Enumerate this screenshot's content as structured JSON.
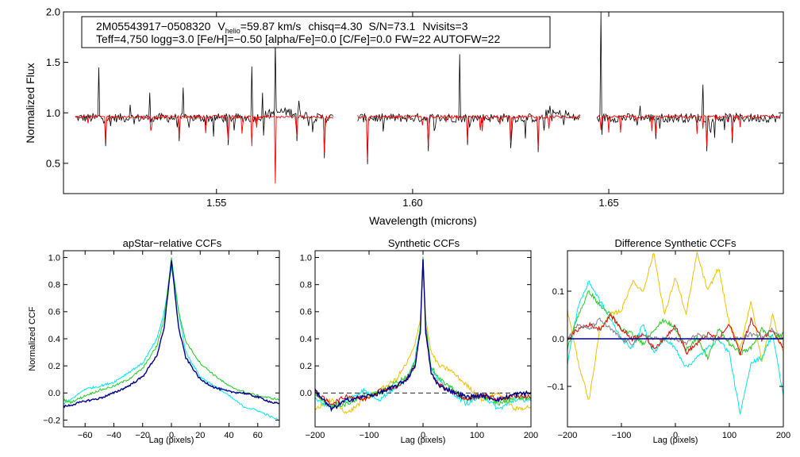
{
  "colors": {
    "observed": "#000000",
    "model": "#ff0000",
    "navy": "#00008b",
    "green": "#22cc22",
    "cyan": "#00e5ee",
    "yellow": "#f0c000",
    "red": "#dd0000",
    "grey": "#808080"
  },
  "chart_data": [
    {
      "type": "line",
      "id": "spectrum",
      "title": "",
      "xlabel": "Wavelength (microns)",
      "ylabel": "Normalized Flux",
      "xlim": [
        1.511,
        1.6945
      ],
      "ylim": [
        0.2,
        2.0
      ],
      "xticks": [
        1.55,
        1.6,
        1.65
      ],
      "xticklabels": [
        "1.55",
        "1.60",
        "1.65"
      ],
      "yticks": [
        0.5,
        1.0,
        1.5,
        2.0
      ],
      "yticklabels": [
        "0.5",
        "1.0",
        "1.5",
        "2.0"
      ],
      "annotation": {
        "star_id": "2M05543917−0508320",
        "vhelio_label": "V",
        "vhelio_sub": "helio",
        "vhelio_value": "=59.87 km/s",
        "chisq": "chisq=4.30",
        "snr": "S/N=73.1",
        "nvisits": "Nvisits=3",
        "params": "Teff=4,750 logg=3.0 [Fe/H]=−0.50 [alpha/Fe]=0.0 [C/Fe]=0.0 FW=22 AUTOFW=22"
      },
      "chips": [
        [
          1.514,
          1.58
        ],
        [
          1.586,
          1.643
        ],
        [
          1.647,
          1.694
        ]
      ],
      "series": [
        {
          "name": "observed spectrum",
          "color": "#000000",
          "continuum": 0.95
        },
        {
          "name": "synthetic model",
          "color": "#ff0000",
          "continuum": 0.96
        }
      ],
      "spikes": [
        {
          "x": 1.52,
          "y": 1.45
        },
        {
          "x": 1.528,
          "y": 1.08
        },
        {
          "x": 1.533,
          "y": 1.2
        },
        {
          "x": 1.5415,
          "y": 1.25
        },
        {
          "x": 1.559,
          "y": 1.46
        },
        {
          "x": 1.5618,
          "y": 1.2
        },
        {
          "x": 1.565,
          "y": 1.7
        },
        {
          "x": 1.571,
          "y": 1.12
        },
        {
          "x": 1.612,
          "y": 1.58
        },
        {
          "x": 1.635,
          "y": 1.07
        },
        {
          "x": 1.648,
          "y": 2.0
        },
        {
          "x": 1.658,
          "y": 1.07
        },
        {
          "x": 1.674,
          "y": 1.28
        }
      ],
      "dips": [
        {
          "x": 1.5218,
          "y": 0.67
        },
        {
          "x": 1.5405,
          "y": 0.72
        },
        {
          "x": 1.553,
          "y": 0.68
        },
        {
          "x": 1.559,
          "y": 0.62
        },
        {
          "x": 1.565,
          "y": 0.25
        },
        {
          "x": 1.5705,
          "y": 0.72
        },
        {
          "x": 1.5775,
          "y": 0.55
        },
        {
          "x": 1.5885,
          "y": 0.49
        },
        {
          "x": 1.604,
          "y": 0.62
        },
        {
          "x": 1.614,
          "y": 0.68
        },
        {
          "x": 1.625,
          "y": 0.65
        },
        {
          "x": 1.632,
          "y": 0.61
        },
        {
          "x": 1.648,
          "y": 0.78
        },
        {
          "x": 1.662,
          "y": 0.74
        },
        {
          "x": 1.675,
          "y": 0.62
        },
        {
          "x": 1.6815,
          "y": 0.7
        }
      ]
    },
    {
      "type": "line",
      "id": "apstar_ccf",
      "title": "apStar−relative CCFs",
      "xlabel": "Lag (pixels)",
      "ylabel": "Normalized CCF",
      "xlim": [
        -75,
        75
      ],
      "ylim": [
        -0.25,
        1.05
      ],
      "xticks": [
        -60,
        -40,
        -20,
        0,
        20,
        40,
        60
      ],
      "xticklabels": [
        "−60",
        "−40",
        "−20",
        "0",
        "20",
        "40",
        "60"
      ],
      "yticks": [
        -0.2,
        0.0,
        0.2,
        0.4,
        0.6,
        0.8,
        1.0
      ],
      "yticklabels": [
        "−0.2",
        "0.0",
        "0.2",
        "0.4",
        "0.6",
        "0.8",
        "1.0"
      ],
      "series": [
        {
          "name": "cyan",
          "color": "#00e5ee",
          "x": [
            -75,
            -70,
            -60,
            -50,
            -40,
            -30,
            -20,
            -10,
            -5,
            0,
            5,
            10,
            20,
            30,
            40,
            50,
            60,
            70,
            75
          ],
          "y": [
            -0.08,
            -0.05,
            0.03,
            0.05,
            0.08,
            0.15,
            0.22,
            0.4,
            0.6,
            0.93,
            0.6,
            0.3,
            0.12,
            0.05,
            -0.02,
            -0.1,
            -0.13,
            -0.18,
            -0.2
          ]
        },
        {
          "name": "green",
          "color": "#22cc22",
          "x": [
            -75,
            -70,
            -60,
            -50,
            -40,
            -30,
            -20,
            -10,
            -5,
            0,
            5,
            10,
            20,
            30,
            40,
            50,
            60,
            70,
            75
          ],
          "y": [
            -0.05,
            -0.07,
            -0.02,
            0.02,
            0.05,
            0.1,
            0.18,
            0.35,
            0.55,
            1.0,
            0.6,
            0.38,
            0.22,
            0.13,
            0.05,
            0.01,
            -0.02,
            -0.04,
            -0.05
          ]
        },
        {
          "name": "navy",
          "color": "#00008b",
          "x": [
            -75,
            -70,
            -60,
            -50,
            -40,
            -30,
            -20,
            -10,
            -5,
            0,
            5,
            10,
            20,
            30,
            40,
            50,
            60,
            70,
            75
          ],
          "y": [
            -0.1,
            -0.09,
            -0.06,
            -0.04,
            0.0,
            0.05,
            0.12,
            0.28,
            0.48,
            0.98,
            0.48,
            0.26,
            0.1,
            0.04,
            0.01,
            0.0,
            -0.03,
            -0.07,
            -0.08
          ]
        }
      ]
    },
    {
      "type": "line",
      "id": "synthetic_ccf",
      "title": "Synthetic CCFs",
      "xlabel": "Lag (pixels)",
      "ylabel": "",
      "xlim": [
        -200,
        200
      ],
      "ylim": [
        -0.25,
        1.05
      ],
      "xticks": [
        -200,
        -100,
        0,
        100,
        200
      ],
      "xticklabels": [
        "−200",
        "−100",
        "0",
        "100",
        "200"
      ],
      "yticks": [
        0.0,
        0.2,
        0.4,
        0.6,
        0.8,
        1.0
      ],
      "yticklabels": [
        "0.0",
        "0.2",
        "0.4",
        "0.6",
        "0.8",
        "1.0"
      ],
      "zero_line": true,
      "series": [
        {
          "name": "yellow",
          "color": "#f0c000",
          "x": [
            -200,
            -170,
            -140,
            -110,
            -80,
            -50,
            -30,
            -15,
            -5,
            0,
            5,
            15,
            30,
            50,
            80,
            110,
            140,
            170,
            200
          ],
          "y": [
            -0.12,
            -0.05,
            -0.15,
            -0.05,
            0.02,
            0.1,
            0.22,
            0.35,
            0.55,
            0.95,
            0.55,
            0.3,
            0.2,
            0.17,
            0.06,
            -0.05,
            0.0,
            -0.12,
            -0.1
          ]
        },
        {
          "name": "cyan",
          "color": "#00e5ee",
          "x": [
            -200,
            -170,
            -140,
            -110,
            -80,
            -50,
            -30,
            -15,
            -5,
            0,
            5,
            15,
            30,
            50,
            80,
            110,
            140,
            170,
            200
          ],
          "y": [
            -0.05,
            -0.1,
            -0.05,
            0.02,
            -0.05,
            0.05,
            0.1,
            0.25,
            0.5,
            0.98,
            0.5,
            0.18,
            0.08,
            0.02,
            -0.08,
            -0.02,
            -0.12,
            -0.05,
            -0.05
          ]
        },
        {
          "name": "green",
          "color": "#22cc22",
          "x": [
            -200,
            -170,
            -140,
            -110,
            -80,
            -50,
            -30,
            -15,
            -5,
            0,
            5,
            15,
            30,
            50,
            80,
            110,
            140,
            170,
            200
          ],
          "y": [
            -0.02,
            -0.1,
            -0.08,
            -0.02,
            0.0,
            0.08,
            0.12,
            0.22,
            0.48,
            1.0,
            0.5,
            0.2,
            0.1,
            0.05,
            -0.05,
            -0.02,
            -0.08,
            -0.03,
            -0.04
          ]
        },
        {
          "name": "red",
          "color": "#dd0000",
          "x": [
            -200,
            -170,
            -140,
            -110,
            -80,
            -50,
            -30,
            -15,
            -5,
            0,
            5,
            15,
            30,
            50,
            80,
            110,
            140,
            170,
            200
          ],
          "y": [
            0.0,
            -0.08,
            -0.02,
            -0.05,
            0.02,
            0.04,
            0.1,
            0.2,
            0.45,
            1.0,
            0.45,
            0.15,
            0.06,
            0.02,
            -0.05,
            -0.01,
            -0.05,
            -0.02,
            -0.03
          ]
        },
        {
          "name": "navy",
          "color": "#00008b",
          "x": [
            -200,
            -170,
            -140,
            -110,
            -80,
            -50,
            -30,
            -15,
            -5,
            0,
            5,
            15,
            30,
            50,
            80,
            110,
            140,
            170,
            200
          ],
          "y": [
            0.02,
            -0.12,
            -0.05,
            -0.03,
            0.0,
            0.05,
            0.1,
            0.2,
            0.45,
            1.0,
            0.45,
            0.15,
            0.05,
            0.02,
            -0.03,
            -0.02,
            -0.05,
            -0.01,
            0.0
          ]
        }
      ]
    },
    {
      "type": "line",
      "id": "difference_ccf",
      "title": "Difference Synthetic CCFs",
      "xlabel": "Lag (pixels)",
      "ylabel": "",
      "xlim": [
        -200,
        200
      ],
      "ylim": [
        -0.185,
        0.185
      ],
      "xticks": [
        -200,
        -100,
        0,
        100,
        200
      ],
      "xticklabels": [
        "−200",
        "−100",
        "0",
        "100",
        "200"
      ],
      "yticks": [
        -0.1,
        0.0,
        0.1
      ],
      "yticklabels": [
        "−0.1",
        "0.0",
        "0.1"
      ],
      "zero_line": true,
      "series": [
        {
          "name": "yellow",
          "color": "#f0c000",
          "x": [
            -200,
            -180,
            -160,
            -140,
            -120,
            -100,
            -80,
            -60,
            -40,
            -20,
            0,
            20,
            40,
            60,
            80,
            100,
            120,
            140,
            160,
            180,
            200
          ],
          "y": [
            0.06,
            -0.05,
            -0.13,
            0.02,
            0.05,
            0.06,
            0.12,
            0.1,
            0.18,
            0.05,
            0.13,
            0.05,
            0.18,
            0.1,
            0.15,
            0.03,
            -0.02,
            0.08,
            -0.05,
            0.05,
            -0.03
          ]
        },
        {
          "name": "cyan",
          "color": "#00e5ee",
          "x": [
            -200,
            -180,
            -160,
            -140,
            -120,
            -100,
            -80,
            -60,
            -40,
            -20,
            0,
            20,
            40,
            60,
            80,
            100,
            120,
            140,
            160,
            180,
            200
          ],
          "y": [
            -0.05,
            0.07,
            0.12,
            0.08,
            0.04,
            0.0,
            -0.02,
            0.03,
            -0.03,
            0.0,
            -0.02,
            -0.06,
            -0.04,
            -0.02,
            0.0,
            -0.03,
            -0.16,
            -0.05,
            -0.04,
            0.01,
            -0.12
          ]
        },
        {
          "name": "green",
          "color": "#22cc22",
          "x": [
            -200,
            -180,
            -160,
            -140,
            -120,
            -100,
            -80,
            -60,
            -40,
            -20,
            0,
            20,
            40,
            60,
            80,
            100,
            120,
            140,
            160,
            180,
            200
          ],
          "y": [
            -0.02,
            0.05,
            0.1,
            0.07,
            0.05,
            0.02,
            0.01,
            -0.01,
            0.02,
            0.04,
            0.02,
            -0.02,
            0.0,
            -0.04,
            0.02,
            -0.01,
            -0.03,
            -0.02,
            0.02,
            0.0,
            0.01
          ]
        },
        {
          "name": "red",
          "color": "#dd0000",
          "x": [
            -200,
            -180,
            -160,
            -140,
            -120,
            -100,
            -80,
            -60,
            -40,
            -20,
            0,
            20,
            40,
            60,
            80,
            100,
            120,
            140,
            160,
            180,
            200
          ],
          "y": [
            0.0,
            0.02,
            0.03,
            0.02,
            0.05,
            0.02,
            0.0,
            0.01,
            -0.02,
            0.0,
            0.03,
            -0.03,
            -0.01,
            0.01,
            0.0,
            0.03,
            -0.03,
            0.04,
            0.0,
            0.02,
            -0.02
          ]
        },
        {
          "name": "grey",
          "color": "#808080",
          "x": [
            -200,
            -180,
            -160,
            -140,
            -120,
            -100,
            -80,
            -60,
            -40,
            -20,
            0,
            20,
            40,
            60,
            80,
            100,
            120,
            140,
            160,
            180,
            200
          ],
          "y": [
            0.0,
            0.03,
            0.02,
            0.04,
            0.02,
            0.0,
            -0.01,
            0.01,
            0.0,
            0.0,
            0.0,
            -0.01,
            0.01,
            0.0,
            0.0,
            0.0,
            0.0,
            0.01,
            0.0,
            0.02,
            0.0
          ]
        },
        {
          "name": "navy",
          "color": "#00008b",
          "x": [
            -200,
            -150,
            -100,
            -50,
            0,
            50,
            100,
            150,
            200
          ],
          "y": [
            0.0,
            0.0,
            0.0,
            0.0,
            0.0,
            0.0,
            0.0,
            0.0,
            0.0
          ]
        }
      ]
    }
  ]
}
